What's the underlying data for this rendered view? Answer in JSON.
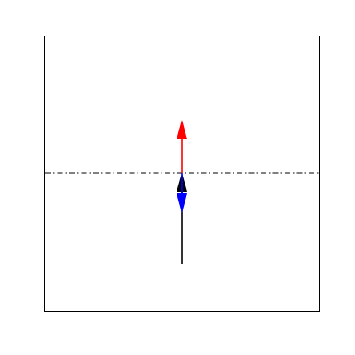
{
  "colors": {
    "background": "#ffffff",
    "frame": "#000000",
    "baseline": "#000000",
    "arrow_up": "#ff0000",
    "arrow_down": "#0000ff",
    "arrow_resultant": "#000000"
  },
  "diagram": {
    "baseline_style": "dash-dot",
    "vectors": [
      {
        "name": "upward-vector",
        "direction": "up",
        "relative_length": 1.0,
        "color_key": "arrow_up"
      },
      {
        "name": "downward-vector",
        "direction": "down",
        "relative_length": 0.55,
        "color_key": "arrow_down"
      },
      {
        "name": "resultant-vector",
        "direction": "up",
        "relative_length": 1.6,
        "color_key": "arrow_resultant"
      }
    ]
  }
}
